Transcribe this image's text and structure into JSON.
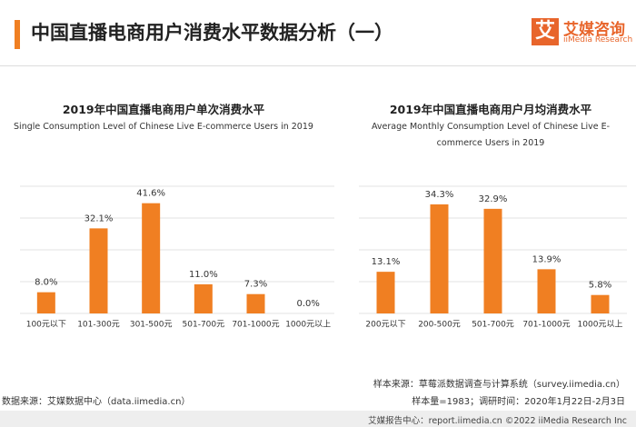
{
  "header": {
    "title": "中国直播电商用户消费水平数据分析（一）",
    "logo_mark": "艾",
    "logo_name": "艾媒咨询",
    "logo_en": "iiMedia Research"
  },
  "chart_data": [
    {
      "type": "bar",
      "title": "2019年中国直播电商用户单次消费水平",
      "subtitle": "Single Consumption Level of Chinese Live E-commerce Users in 2019",
      "categories": [
        "100元以下",
        "101-300元",
        "301-500元",
        "501-700元",
        "701-1000元",
        "1000元以上"
      ],
      "values": [
        8.0,
        32.1,
        41.6,
        11.0,
        7.3,
        0.0
      ],
      "value_labels": [
        "8.0%",
        "32.1%",
        "41.6%",
        "11.0%",
        "7.3%",
        "0.0%"
      ],
      "color": "#f07f22",
      "ylim": [
        0,
        48
      ],
      "yticks": [
        0,
        12,
        24,
        36,
        48
      ],
      "grid": true
    },
    {
      "type": "bar",
      "title": "2019年中国直播电商用户月均消费水平",
      "subtitle": "Average Monthly Consumption Level of Chinese Live E-commerce Users in 2019",
      "categories": [
        "200元以下",
        "200-500元",
        "501-700元",
        "701-1000元",
        "1000元以上"
      ],
      "values": [
        13.1,
        34.3,
        32.9,
        13.9,
        5.8
      ],
      "value_labels": [
        "13.1%",
        "34.3%",
        "32.9%",
        "13.9%",
        "5.8%"
      ],
      "color": "#f07f22",
      "ylim": [
        0,
        40
      ],
      "yticks": [
        0,
        10,
        20,
        30,
        40
      ],
      "grid": true
    }
  ],
  "footer": {
    "sample_source": "样本来源：草莓派数据调查与计算系统（survey.iimedia.cn）",
    "sample_info": "样本量=1983；调研时间：2020年1月22日-2月3日",
    "data_source": "数据来源：艾媒数据中心（data.iimedia.cn）",
    "bottom": "艾媒报告中心：report.iimedia.cn ©2022 iiMedia Research Inc"
  }
}
